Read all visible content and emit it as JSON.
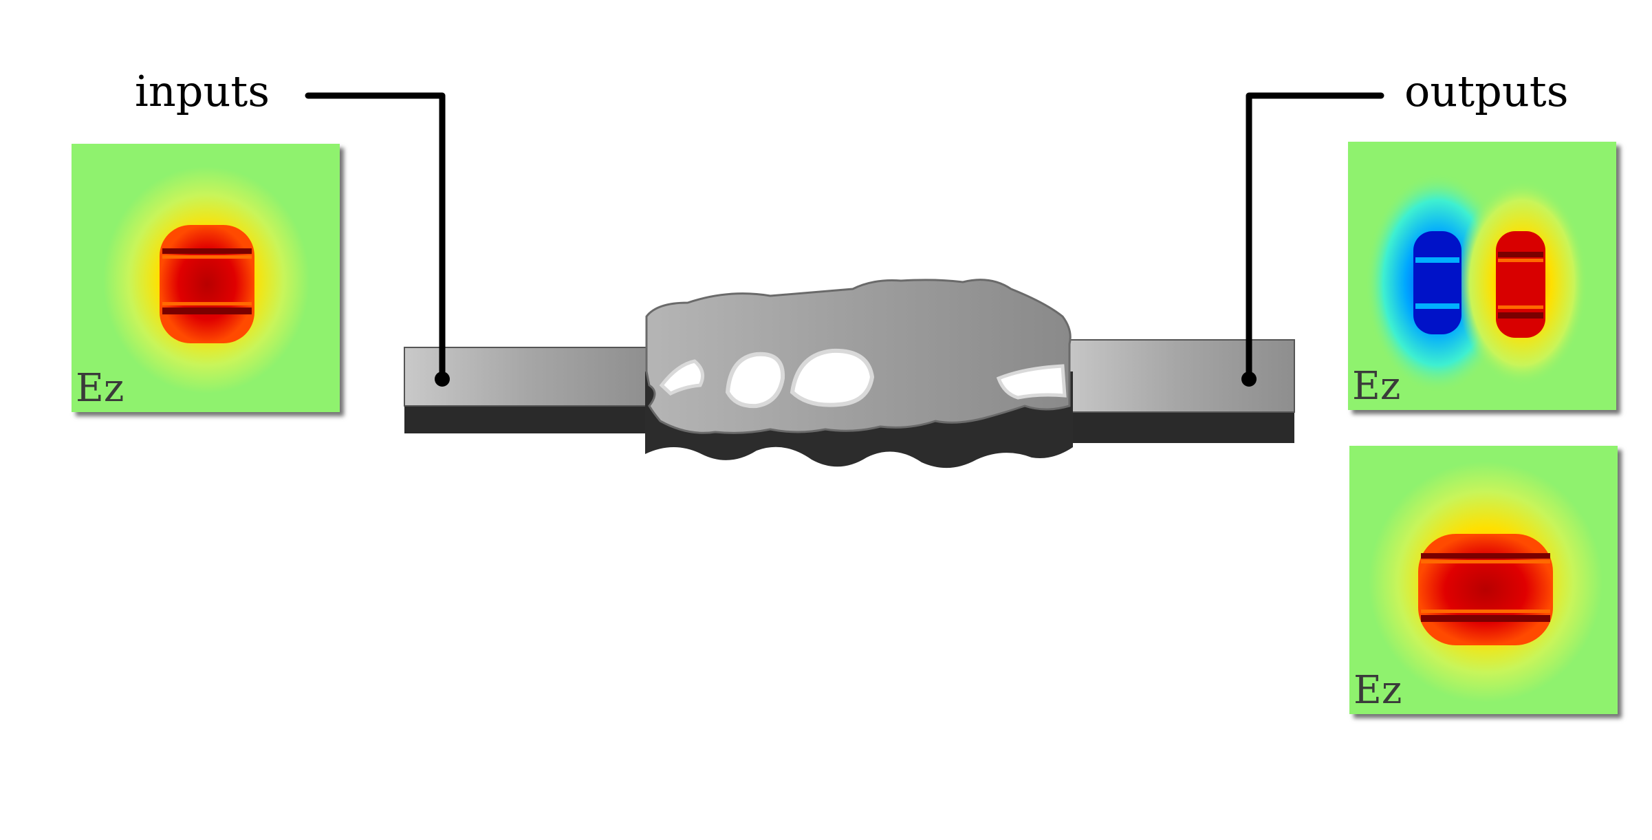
{
  "labels": {
    "inputs": "inputs",
    "outputs": "outputs"
  },
  "input_modes": [
    {
      "field_label": "Ez",
      "mode": "fundamental"
    }
  ],
  "output_modes": [
    {
      "field_label": "Ez",
      "mode": "first-order antisymmetric"
    },
    {
      "field_label": "Ez",
      "mode": "fundamental"
    }
  ],
  "colors": {
    "device": "#9a9a9a",
    "device_shadow": "#2a2a2a",
    "leader_line": "#000000",
    "field_background": "#8ff26e",
    "field_positive": "#d40000",
    "field_negative": "#0018d8"
  }
}
